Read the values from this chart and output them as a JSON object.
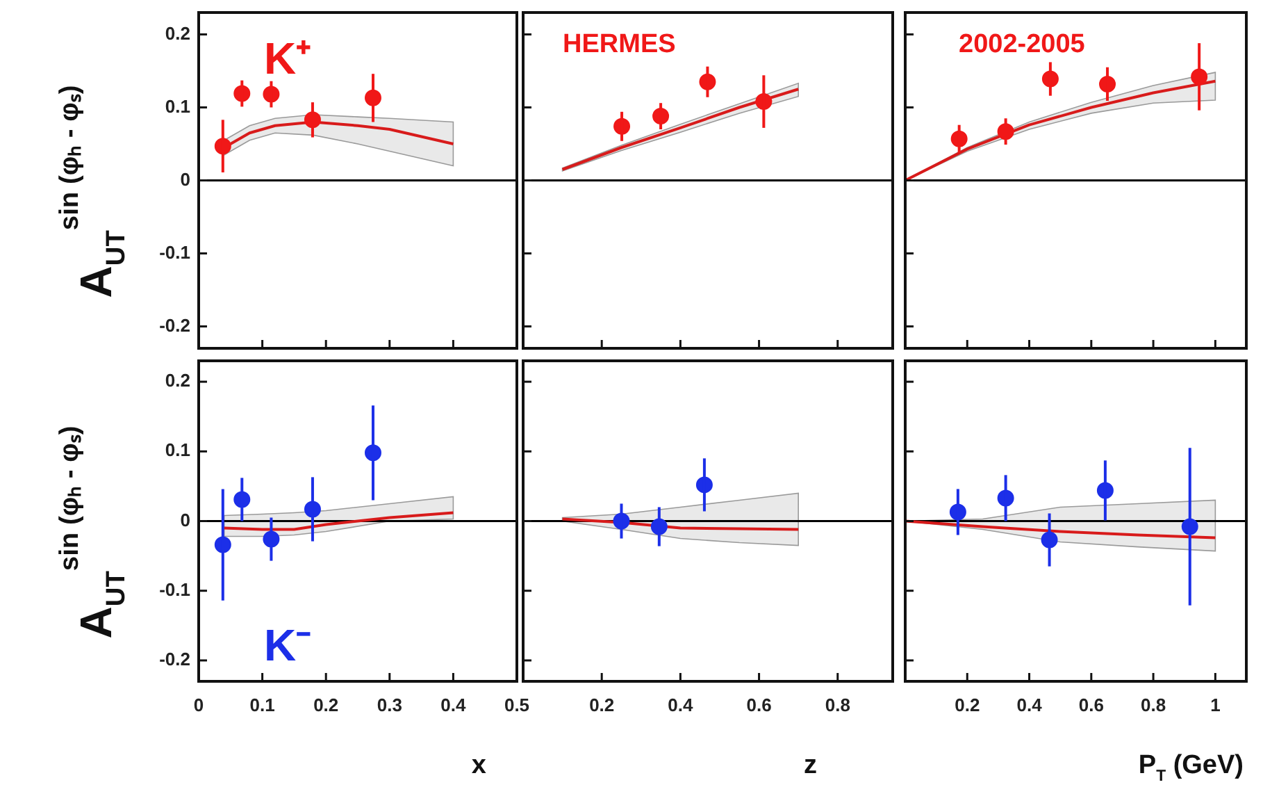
{
  "chart_data": [
    {
      "type": "scatter",
      "ylabel": "A$_{UT}$$^{sin (φₕ - φₛ)}$",
      "annotations": [
        "K⁺"
      ],
      "xlim": [
        0,
        0.5
      ],
      "xticks": [
        0,
        0.1,
        0.2,
        0.3,
        0.4,
        0.5
      ],
      "ylim": [
        -0.23,
        0.23
      ],
      "yticks": [
        -0.2,
        -0.1,
        0,
        0.1,
        0.2
      ],
      "tick_labels": "y",
      "marker": "circle",
      "ref_lines": [
        {
          "axis": "y",
          "value": 0
        }
      ],
      "series": [
        {
          "type": "scatter",
          "color": "#f01818",
          "x": [
            0.038,
            0.068,
            0.114,
            0.179,
            0.274
          ],
          "values": [
            0.047,
            0.119,
            0.118,
            0.083,
            0.113
          ],
          "errors": [
            0.036,
            0.018,
            0.018,
            0.024,
            0.033
          ]
        },
        {
          "type": "line",
          "marker": "none",
          "color": "#d81b1b",
          "x": [
            0.04,
            0.08,
            0.12,
            0.18,
            0.25,
            0.3,
            0.4
          ],
          "values": [
            0.045,
            0.065,
            0.075,
            0.08,
            0.075,
            0.07,
            0.05
          ],
          "upper": [
            0.055,
            0.075,
            0.085,
            0.09,
            0.087,
            0.085,
            0.08
          ],
          "lower": [
            0.035,
            0.055,
            0.065,
            0.062,
            0.05,
            0.04,
            0.02
          ]
        }
      ]
    },
    {
      "type": "scatter",
      "annotations": [
        "HERMES"
      ],
      "xlim": [
        0,
        0.94
      ],
      "xticks": [
        0.2,
        0.4,
        0.6,
        0.8
      ],
      "ylim": [
        -0.23,
        0.23
      ],
      "yticks": [
        -0.2,
        -0.1,
        0,
        0.1,
        0.2
      ],
      "tick_labels": false,
      "marker": "circle",
      "ref_lines": [
        {
          "axis": "y",
          "value": 0
        }
      ],
      "series": [
        {
          "type": "scatter",
          "color": "#f01818",
          "x": [
            0.251,
            0.35,
            0.469,
            0.612
          ],
          "values": [
            0.074,
            0.088,
            0.135,
            0.108
          ],
          "errors": [
            0.02,
            0.018,
            0.021,
            0.036
          ]
        },
        {
          "type": "line",
          "marker": "none",
          "color": "#d81b1b",
          "x": [
            0.1,
            0.25,
            0.4,
            0.55,
            0.7
          ],
          "values": [
            0.015,
            0.045,
            0.072,
            0.1,
            0.125
          ],
          "upper": [
            0.017,
            0.048,
            0.077,
            0.105,
            0.133
          ],
          "lower": [
            0.013,
            0.041,
            0.066,
            0.092,
            0.115
          ]
        }
      ]
    },
    {
      "type": "scatter",
      "annotations": [
        "2002-2005"
      ],
      "xlim": [
        0,
        1.1
      ],
      "xticks": [
        0.2,
        0.4,
        0.6,
        0.8,
        1
      ],
      "ylim": [
        -0.23,
        0.23
      ],
      "yticks": [
        -0.2,
        -0.1,
        0,
        0.1,
        0.2
      ],
      "tick_labels": false,
      "marker": "circle",
      "ref_lines": [
        {
          "axis": "y",
          "value": 0
        }
      ],
      "series": [
        {
          "type": "scatter",
          "color": "#f01818",
          "x": [
            0.174,
            0.324,
            0.468,
            0.652,
            0.948
          ],
          "values": [
            0.057,
            0.067,
            0.139,
            0.132,
            0.142
          ],
          "errors": [
            0.019,
            0.018,
            0.023,
            0.023,
            0.046
          ]
        },
        {
          "type": "line",
          "marker": "none",
          "color": "#d81b1b",
          "x": [
            0,
            0.2,
            0.4,
            0.6,
            0.8,
            1.0
          ],
          "values": [
            0,
            0.043,
            0.076,
            0.1,
            0.12,
            0.136
          ],
          "upper": [
            0,
            0.045,
            0.08,
            0.107,
            0.13,
            0.148
          ],
          "lower": [
            0,
            0.04,
            0.07,
            0.092,
            0.106,
            0.11
          ]
        }
      ]
    },
    {
      "type": "scatter",
      "ylabel": "A$_{UT}$$^{sin (φₕ - φₛ)}$",
      "xlabel": "x",
      "annotations": [
        "K⁻"
      ],
      "xlim": [
        0,
        0.5
      ],
      "xticks": [
        0,
        0.1,
        0.2,
        0.3,
        0.4,
        0.5
      ],
      "ylim": [
        -0.23,
        0.23
      ],
      "yticks": [
        -0.2,
        -0.1,
        0,
        0.1,
        0.2
      ],
      "marker": "circle",
      "ref_lines": [
        {
          "axis": "y",
          "value": 0
        }
      ],
      "series": [
        {
          "type": "scatter",
          "color": "#1c2fe8",
          "x": [
            0.038,
            0.068,
            0.114,
            0.179,
            0.274
          ],
          "values": [
            -0.034,
            0.031,
            -0.026,
            0.017,
            0.098
          ],
          "errors": [
            0.08,
            0.031,
            0.031,
            0.046,
            0.068
          ]
        },
        {
          "type": "line",
          "marker": "none",
          "color": "#d81b1b",
          "x": [
            0.04,
            0.1,
            0.15,
            0.2,
            0.3,
            0.4
          ],
          "values": [
            -0.01,
            -0.012,
            -0.012,
            -0.005,
            0.005,
            0.012
          ],
          "upper": [
            0.008,
            0.01,
            0.012,
            0.015,
            0.025,
            0.035
          ],
          "lower": [
            -0.022,
            -0.022,
            -0.02,
            -0.015,
            0,
            0.003
          ]
        }
      ]
    },
    {
      "type": "scatter",
      "xlabel": "z",
      "xlim": [
        0,
        0.94
      ],
      "xticks": [
        0.2,
        0.4,
        0.6,
        0.8
      ],
      "ylim": [
        -0.23,
        0.23
      ],
      "yticks": [
        -0.2,
        -0.1,
        0,
        0.1,
        0.2
      ],
      "tick_labels": "x",
      "marker": "circle",
      "ref_lines": [
        {
          "axis": "y",
          "value": 0
        }
      ],
      "series": [
        {
          "type": "scatter",
          "color": "#1c2fe8",
          "x": [
            0.25,
            0.346,
            0.461
          ],
          "values": [
            0,
            -0.008,
            0.052
          ],
          "errors": [
            0.025,
            0.028,
            0.038
          ]
        },
        {
          "type": "line",
          "marker": "none",
          "color": "#d81b1b",
          "x": [
            0.1,
            0.25,
            0.4,
            0.55,
            0.7
          ],
          "values": [
            0.003,
            -0.002,
            -0.01,
            -0.011,
            -0.012
          ],
          "upper": [
            0.005,
            0.01,
            0.02,
            0.03,
            0.04
          ],
          "lower": [
            0,
            -0.012,
            -0.025,
            -0.031,
            -0.035
          ]
        }
      ]
    },
    {
      "type": "scatter",
      "xlabel": "P$_{T}$ (GeV)",
      "xlim": [
        0,
        1.1
      ],
      "xticks": [
        0.2,
        0.4,
        0.6,
        0.8,
        1
      ],
      "ylim": [
        -0.23,
        0.23
      ],
      "yticks": [
        -0.2,
        -0.1,
        0,
        0.1,
        0.2
      ],
      "tick_labels": "x",
      "marker": "circle",
      "ref_lines": [
        {
          "axis": "y",
          "value": 0
        }
      ],
      "series": [
        {
          "type": "scatter",
          "color": "#1c2fe8",
          "x": [
            0.17,
            0.324,
            0.465,
            0.645,
            0.918
          ],
          "values": [
            0.013,
            0.033,
            -0.027,
            0.044,
            -0.008
          ],
          "errors": [
            0.033,
            0.033,
            0.038,
            0.043,
            0.113
          ]
        },
        {
          "type": "line",
          "marker": "none",
          "color": "#d81b1b",
          "x": [
            0,
            0.25,
            0.5,
            0.75,
            1.0
          ],
          "values": [
            0,
            -0.008,
            -0.015,
            -0.02,
            -0.024
          ],
          "upper": [
            0,
            0.003,
            0.02,
            0.025,
            0.03
          ],
          "lower": [
            0,
            -0.012,
            -0.03,
            -0.037,
            -0.043
          ]
        }
      ]
    }
  ]
}
